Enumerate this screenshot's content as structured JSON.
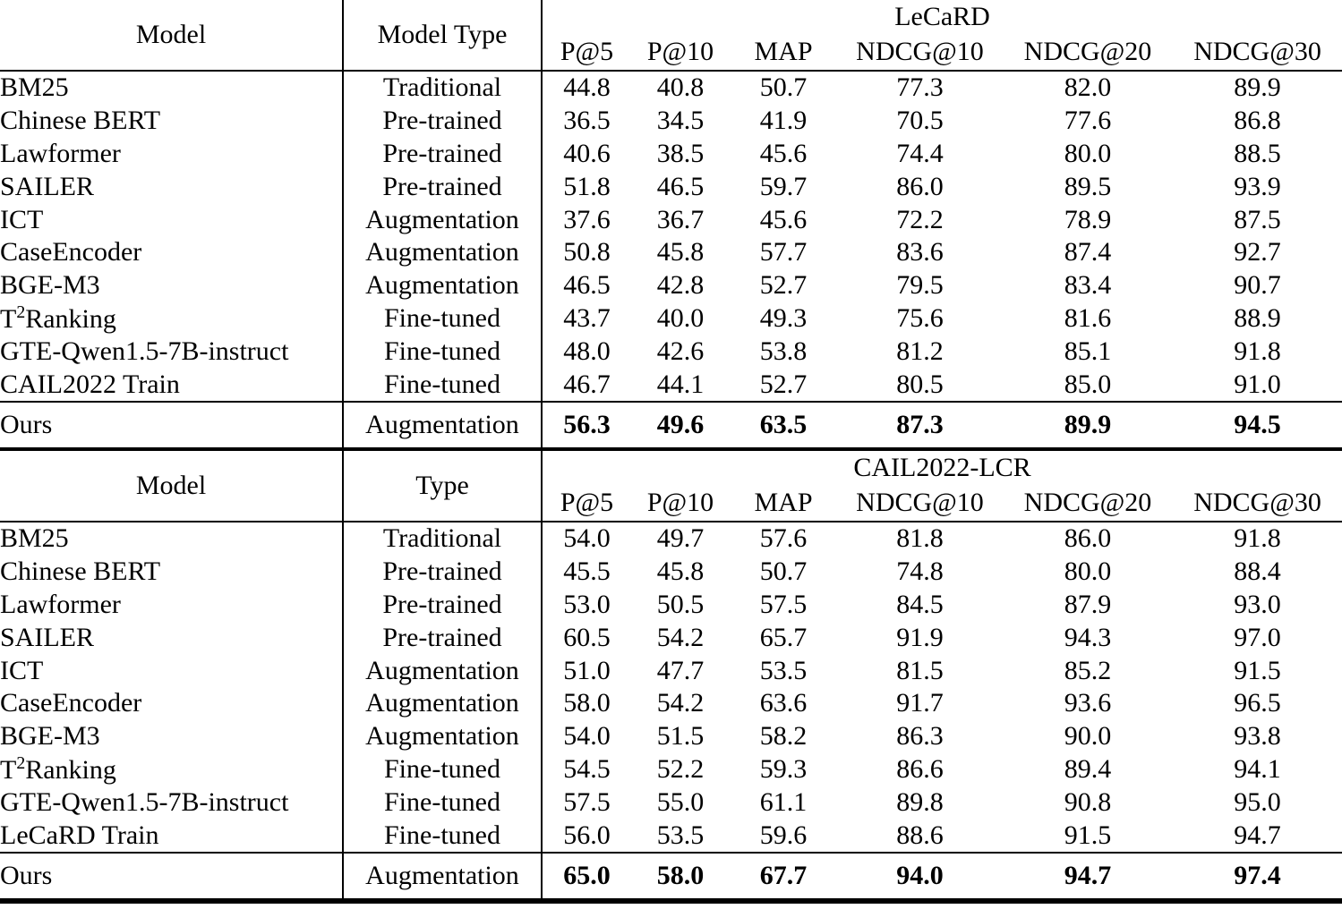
{
  "page": {
    "background": "#ffffff",
    "text_color": "#000000",
    "rule_color": "#000000"
  },
  "tables": [
    {
      "id": "lecard",
      "model_header": "Model",
      "type_header": "Model Type",
      "group_header": "LeCaRD",
      "metric_headers": [
        "P@5",
        "P@10",
        "MAP",
        "NDCG@10",
        "NDCG@20",
        "NDCG@30"
      ],
      "rows": [
        {
          "model": "BM25",
          "type": "Traditional",
          "values": [
            "44.8",
            "40.8",
            "50.7",
            "77.3",
            "82.0",
            "89.9"
          ]
        },
        {
          "model": "Chinese BERT",
          "type": "Pre-trained",
          "values": [
            "36.5",
            "34.5",
            "41.9",
            "70.5",
            "77.6",
            "86.8"
          ]
        },
        {
          "model": "Lawformer",
          "type": "Pre-trained",
          "values": [
            "40.6",
            "38.5",
            "45.6",
            "74.4",
            "80.0",
            "88.5"
          ]
        },
        {
          "model": "SAILER",
          "type": "Pre-trained",
          "values": [
            "51.8",
            "46.5",
            "59.7",
            "86.0",
            "89.5",
            "93.9"
          ]
        },
        {
          "model": "ICT",
          "type": "Augmentation",
          "values": [
            "37.6",
            "36.7",
            "45.6",
            "72.2",
            "78.9",
            "87.5"
          ]
        },
        {
          "model": "CaseEncoder",
          "type": "Augmentation",
          "values": [
            "50.8",
            "45.8",
            "57.7",
            "83.6",
            "87.4",
            "92.7"
          ]
        },
        {
          "model": "BGE-M3",
          "type": "Augmentation",
          "values": [
            "46.5",
            "42.8",
            "52.7",
            "79.5",
            "83.4",
            "90.7"
          ]
        },
        {
          "model": "T^2Ranking",
          "type": "Fine-tuned",
          "values": [
            "43.7",
            "40.0",
            "49.3",
            "75.6",
            "81.6",
            "88.9"
          ]
        },
        {
          "model": "GTE-Qwen1.5-7B-instruct",
          "type": "Fine-tuned",
          "values": [
            "48.0",
            "42.6",
            "53.8",
            "81.2",
            "85.1",
            "91.8"
          ]
        },
        {
          "model": "CAIL2022 Train",
          "type": "Fine-tuned",
          "values": [
            "46.7",
            "44.1",
            "52.7",
            "80.5",
            "85.0",
            "91.0"
          ]
        }
      ],
      "ours": {
        "model": "Ours",
        "type": "Augmentation",
        "values": [
          "56.3",
          "49.6",
          "63.5",
          "87.3",
          "89.9",
          "94.5"
        ]
      }
    },
    {
      "id": "cail2022-lcr",
      "model_header": "Model",
      "type_header": "Type",
      "group_header": "CAIL2022-LCR",
      "metric_headers": [
        "P@5",
        "P@10",
        "MAP",
        "NDCG@10",
        "NDCG@20",
        "NDCG@30"
      ],
      "rows": [
        {
          "model": "BM25",
          "type": "Traditional",
          "values": [
            "54.0",
            "49.7",
            "57.6",
            "81.8",
            "86.0",
            "91.8"
          ]
        },
        {
          "model": "Chinese BERT",
          "type": "Pre-trained",
          "values": [
            "45.5",
            "45.8",
            "50.7",
            "74.8",
            "80.0",
            "88.4"
          ]
        },
        {
          "model": "Lawformer",
          "type": "Pre-trained",
          "values": [
            "53.0",
            "50.5",
            "57.5",
            "84.5",
            "87.9",
            "93.0"
          ]
        },
        {
          "model": "SAILER",
          "type": "Pre-trained",
          "values": [
            "60.5",
            "54.2",
            "65.7",
            "91.9",
            "94.3",
            "97.0"
          ]
        },
        {
          "model": "ICT",
          "type": "Augmentation",
          "values": [
            "51.0",
            "47.7",
            "53.5",
            "81.5",
            "85.2",
            "91.5"
          ]
        },
        {
          "model": "CaseEncoder",
          "type": "Augmentation",
          "values": [
            "58.0",
            "54.2",
            "63.6",
            "91.7",
            "93.6",
            "96.5"
          ]
        },
        {
          "model": "BGE-M3",
          "type": "Augmentation",
          "values": [
            "54.0",
            "51.5",
            "58.2",
            "86.3",
            "90.0",
            "93.8"
          ]
        },
        {
          "model": "T^2Ranking",
          "type": "Fine-tuned",
          "values": [
            "54.5",
            "52.2",
            "59.3",
            "86.6",
            "89.4",
            "94.1"
          ]
        },
        {
          "model": "GTE-Qwen1.5-7B-instruct",
          "type": "Fine-tuned",
          "values": [
            "57.5",
            "55.0",
            "61.1",
            "89.8",
            "90.8",
            "95.0"
          ]
        },
        {
          "model": "LeCaRD Train",
          "type": "Fine-tuned",
          "values": [
            "56.0",
            "53.5",
            "59.6",
            "88.6",
            "91.5",
            "94.7"
          ]
        }
      ],
      "ours": {
        "model": "Ours",
        "type": "Augmentation",
        "values": [
          "65.0",
          "58.0",
          "67.7",
          "94.0",
          "94.7",
          "97.4"
        ]
      }
    }
  ]
}
